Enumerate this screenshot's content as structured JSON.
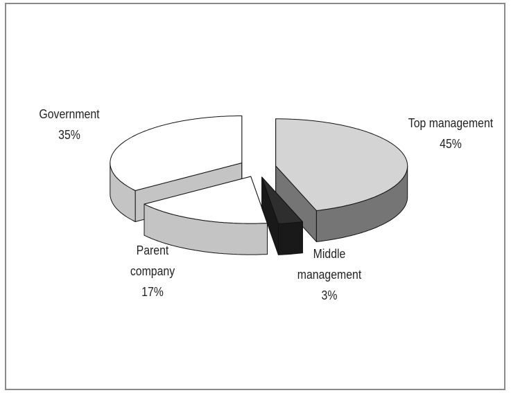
{
  "chart_data": {
    "type": "pie",
    "categories": [
      "Top management",
      "Middle management",
      "Parent company",
      "Government"
    ],
    "values": [
      45,
      3,
      17,
      35
    ],
    "value_labels": [
      "45%",
      "3%",
      "17%",
      "35%"
    ],
    "colors": [
      "#d4d4d4",
      "#2e2e2e",
      "#ffffff",
      "#ffffff"
    ],
    "three_d": true,
    "exploded": true
  }
}
